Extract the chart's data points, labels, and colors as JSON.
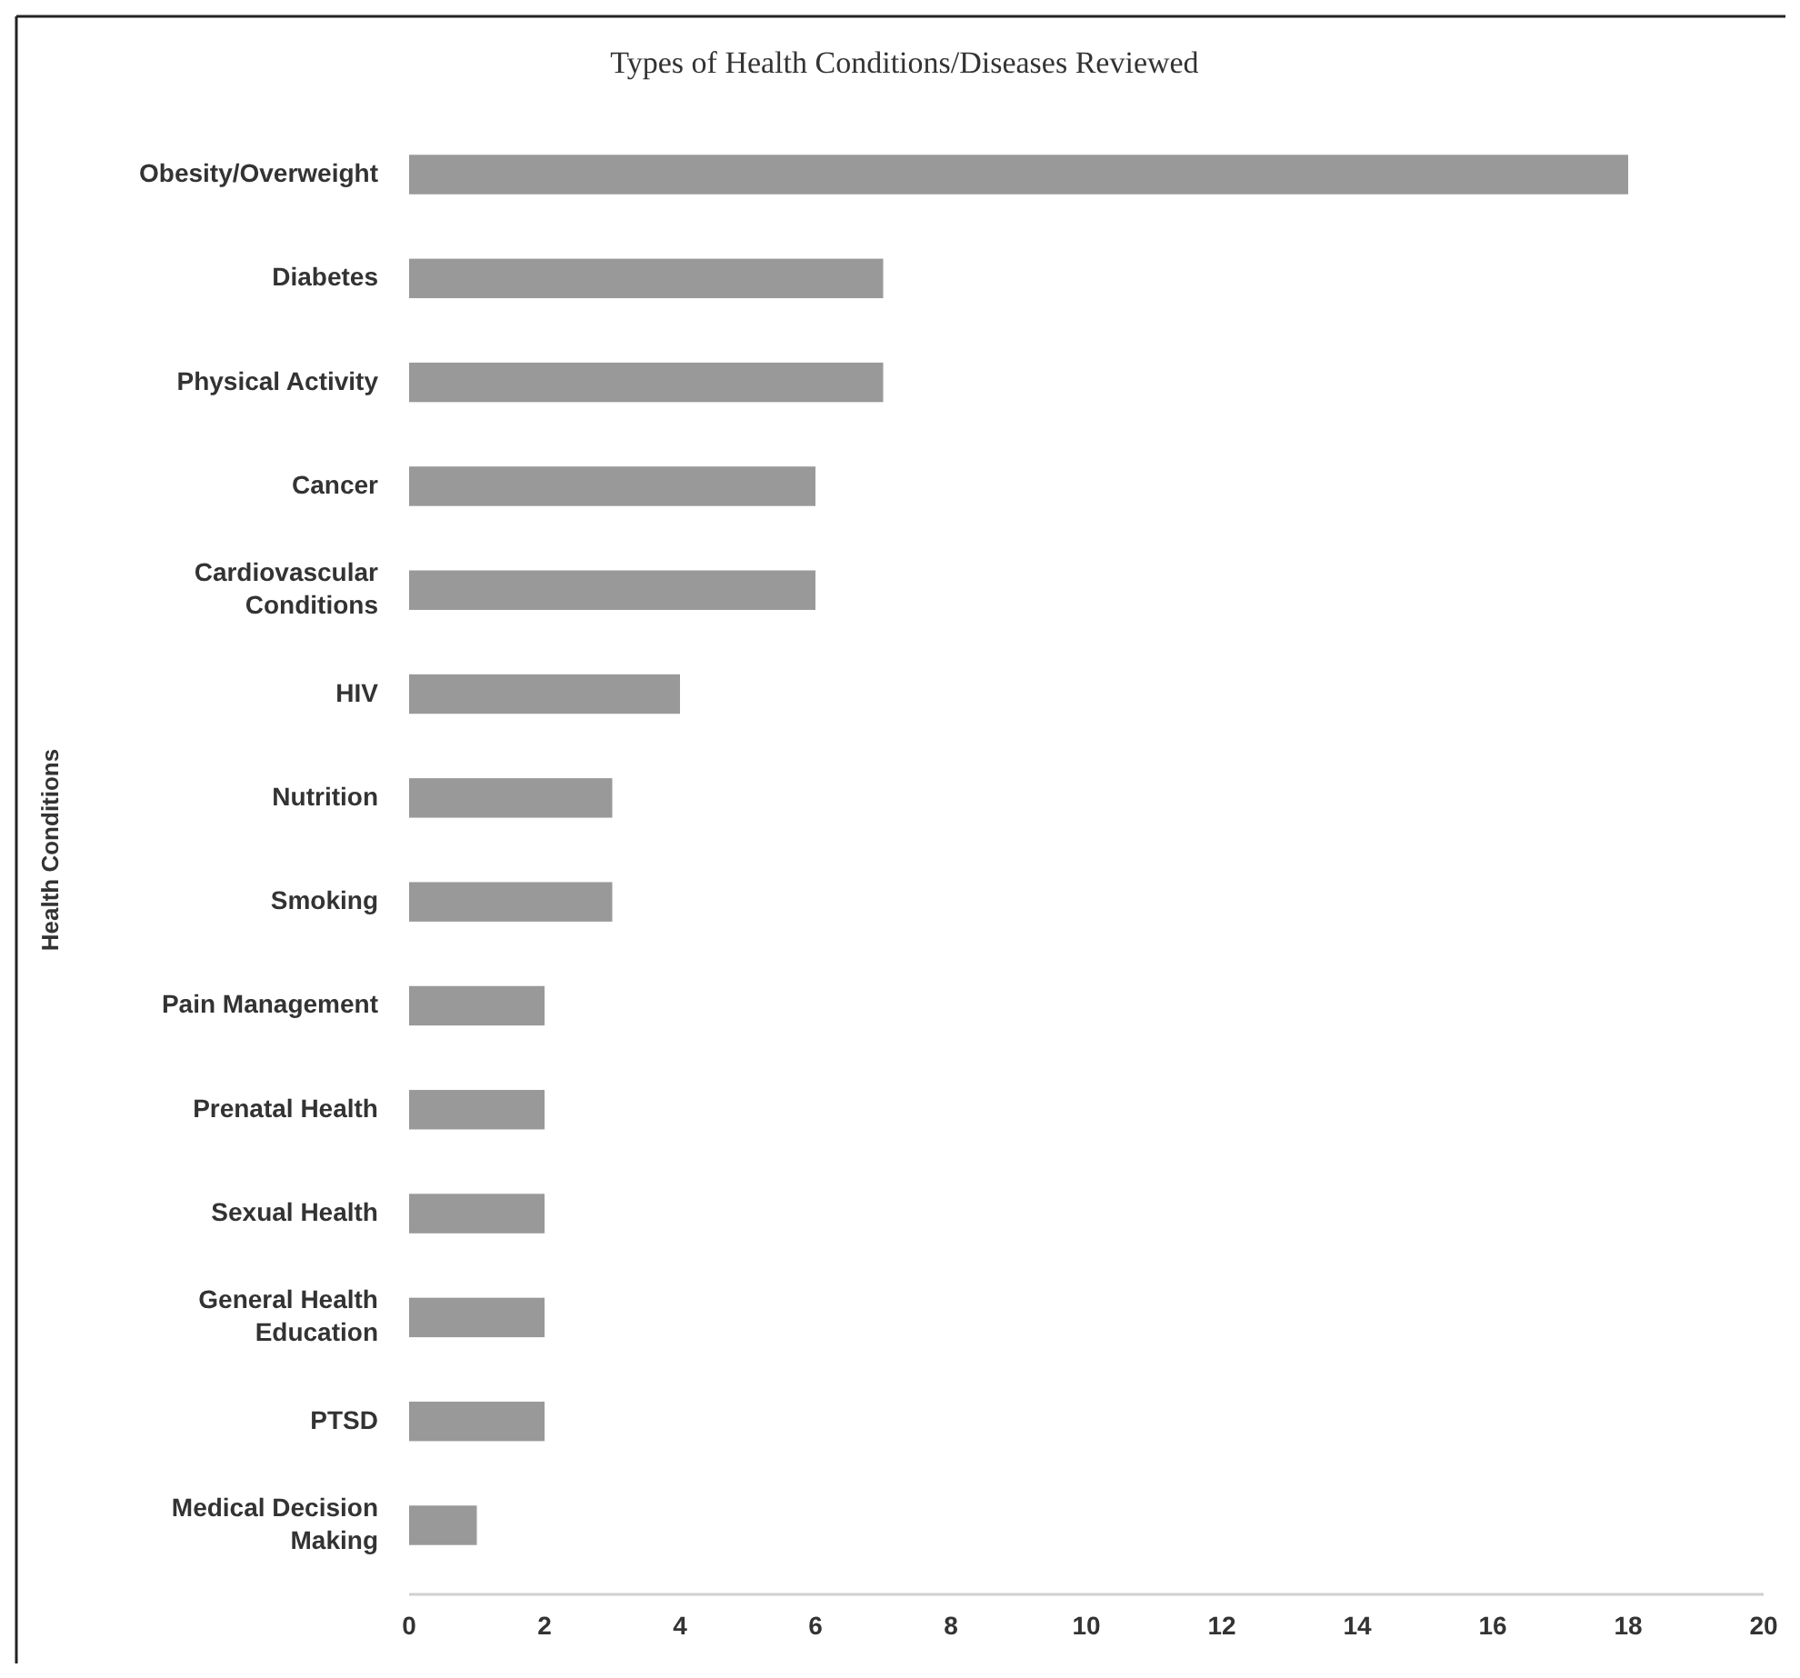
{
  "chart_data": {
    "type": "bar",
    "orientation": "horizontal",
    "title": "Types of Health Conditions/Diseases Reviewed",
    "ylabel": "Health Conditions",
    "categories": [
      "Obesity/Overweight",
      "Diabetes",
      "Physical Activity",
      "Cancer",
      "Cardiovascular Conditions",
      "HIV",
      "Nutrition",
      "Smoking",
      "Pain Management",
      "Prenatal Health",
      "Sexual Health",
      "General Health Education",
      "PTSD",
      "Medical Decision Making"
    ],
    "values": [
      18,
      7,
      7,
      6,
      6,
      4,
      3,
      3,
      2,
      2,
      2,
      2,
      2,
      1
    ],
    "color": "#999999",
    "xlim": [
      0,
      20
    ],
    "xticks": [
      0,
      2,
      4,
      6,
      8,
      10,
      12,
      14,
      16,
      18,
      20
    ],
    "grid": false
  }
}
